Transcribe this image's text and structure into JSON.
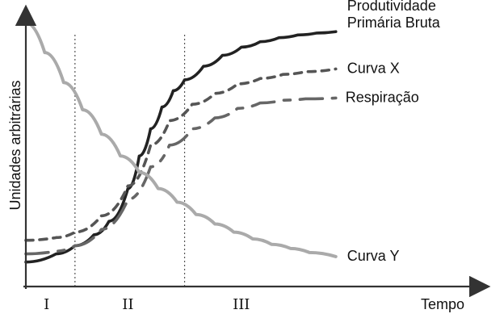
{
  "chart_data": {
    "type": "line",
    "title": "",
    "xlabel": "Tempo",
    "ylabel": "Unidades arbitrárias",
    "xlim": [
      0,
      100
    ],
    "ylim": [
      0,
      100
    ],
    "grid": false,
    "legend": "none",
    "phases": {
      "dividers": [
        13,
        42
      ],
      "labels": [
        "I",
        "II",
        "III"
      ],
      "centers": [
        5.5,
        27,
        57
      ]
    },
    "series": [
      {
        "name": "Produtividade\nPrimária Bruta",
        "style": "solid",
        "color": "#222222",
        "x": [
          0,
          8,
          13,
          18,
          22,
          27,
          30,
          33,
          36,
          39,
          42,
          47,
          52,
          57,
          62,
          67,
          72,
          77,
          82
        ],
        "y": [
          9,
          12,
          15,
          19,
          24,
          36,
          48,
          58,
          66,
          72,
          76,
          81,
          85,
          88,
          90,
          91.5,
          92.5,
          93.2,
          93.7
        ]
      },
      {
        "name": "Curva X",
        "style": "dotted",
        "color": "#555555",
        "x": [
          0,
          8,
          13,
          20,
          27,
          33,
          38,
          44,
          50,
          56,
          62,
          68,
          74,
          82
        ],
        "y": [
          17,
          18,
          20,
          26,
          37,
          52,
          61,
          67,
          71,
          74.5,
          76.5,
          78,
          79,
          80
        ]
      },
      {
        "name": "Respiração",
        "style": "dashed",
        "color": "#666666",
        "x": [
          0,
          8,
          13,
          20,
          27,
          33,
          38,
          44,
          50,
          56,
          62,
          68,
          74,
          82
        ],
        "y": [
          12,
          13,
          15,
          21,
          32,
          44,
          52,
          58,
          62,
          65.5,
          67.5,
          68.5,
          69,
          69.3
        ]
      },
      {
        "name": "Curva Y",
        "style": "solid",
        "color": "#aaaaaa",
        "x": [
          0,
          5,
          10,
          15,
          20,
          25,
          30,
          35,
          40,
          45,
          50,
          55,
          60,
          65,
          70,
          75,
          82
        ],
        "y": [
          97,
          86,
          75,
          65,
          56,
          48,
          42,
          36,
          31,
          26.5,
          23,
          20,
          17.5,
          15.5,
          14,
          12.5,
          11
        ]
      }
    ]
  }
}
